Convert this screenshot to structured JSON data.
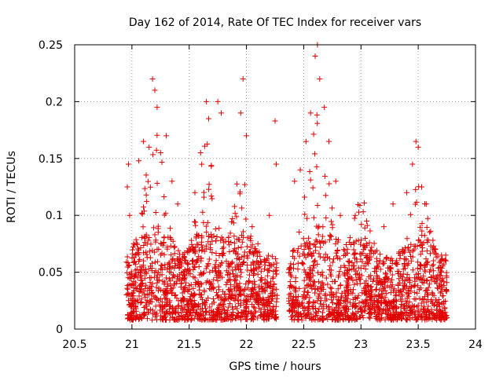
{
  "chart_data": {
    "type": "scatter",
    "title": "Day 162 of 2014, Rate Of TEC Index for receiver vars",
    "xlabel": "GPS time / hours",
    "ylabel": "ROTI / TECUs",
    "xlim": [
      20.5,
      24.0
    ],
    "ylim": [
      0.0,
      0.25
    ],
    "x_ticks": [
      "20.5",
      "21",
      "21.5",
      "22",
      "22.5",
      "23",
      "23.5",
      "24"
    ],
    "y_ticks": [
      "0",
      "0.05",
      "0.1",
      "0.15",
      "0.2",
      "0.25"
    ],
    "grid": true,
    "marker": "plus",
    "color": "#e00000",
    "x_range_with_data": [
      20.95,
      23.75
    ],
    "data_gap": [
      22.27,
      22.37
    ],
    "series": [
      {
        "name": "ROTI",
        "points": [
          [
            21.0,
            0.015
          ],
          [
            21.03,
            0.025
          ],
          [
            21.05,
            0.045
          ],
          [
            21.08,
            0.035
          ],
          [
            21.1,
            0.06
          ],
          [
            21.13,
            0.02
          ],
          [
            21.15,
            0.03
          ],
          [
            21.18,
            0.04
          ],
          [
            21.2,
            0.015
          ],
          [
            21.23,
            0.05
          ],
          [
            21.25,
            0.02
          ],
          [
            21.28,
            0.03
          ],
          [
            21.3,
            0.045
          ],
          [
            21.33,
            0.025
          ],
          [
            21.35,
            0.06
          ],
          [
            21.38,
            0.03
          ],
          [
            21.4,
            0.02
          ],
          [
            21.43,
            0.04
          ],
          [
            21.45,
            0.05
          ],
          [
            21.48,
            0.025
          ],
          [
            21.5,
            0.035
          ],
          [
            21.53,
            0.03
          ],
          [
            21.55,
            0.045
          ],
          [
            21.58,
            0.02
          ],
          [
            21.6,
            0.03
          ],
          [
            21.65,
            0.025
          ],
          [
            21.7,
            0.04
          ],
          [
            21.75,
            0.03
          ],
          [
            21.8,
            0.02
          ],
          [
            21.85,
            0.035
          ],
          [
            21.9,
            0.025
          ],
          [
            21.95,
            0.03
          ],
          [
            22.0,
            0.02
          ],
          [
            22.05,
            0.035
          ],
          [
            22.1,
            0.03
          ],
          [
            22.15,
            0.025
          ],
          [
            22.2,
            0.02
          ],
          [
            22.25,
            0.03
          ],
          [
            22.4,
            0.02
          ],
          [
            22.45,
            0.015
          ],
          [
            22.5,
            0.03
          ],
          [
            22.55,
            0.02
          ],
          [
            22.6,
            0.035
          ],
          [
            22.65,
            0.025
          ],
          [
            22.7,
            0.02
          ],
          [
            22.75,
            0.03
          ],
          [
            22.8,
            0.015
          ],
          [
            22.85,
            0.025
          ],
          [
            22.9,
            0.01
          ],
          [
            22.95,
            0.02
          ],
          [
            23.0,
            0.015
          ],
          [
            23.05,
            0.03
          ],
          [
            23.1,
            0.02
          ],
          [
            23.15,
            0.015
          ],
          [
            23.2,
            0.025
          ],
          [
            23.25,
            0.01
          ],
          [
            23.3,
            0.02
          ],
          [
            23.35,
            0.015
          ],
          [
            23.4,
            0.02
          ],
          [
            23.45,
            0.01
          ],
          [
            23.5,
            0.015
          ],
          [
            23.55,
            0.02
          ],
          [
            23.6,
            0.015
          ],
          [
            23.65,
            0.01
          ],
          [
            23.7,
            0.015
          ],
          [
            23.75,
            0.01
          ],
          [
            20.96,
            0.125
          ],
          [
            20.97,
            0.145
          ],
          [
            20.98,
            0.1
          ],
          [
            21.06,
            0.148
          ],
          [
            21.1,
            0.165
          ],
          [
            21.15,
            0.16
          ],
          [
            21.18,
            0.22
          ],
          [
            21.2,
            0.21
          ],
          [
            21.22,
            0.195
          ],
          [
            21.25,
            0.155
          ],
          [
            21.3,
            0.17
          ],
          [
            21.35,
            0.13
          ],
          [
            21.4,
            0.11
          ],
          [
            21.55,
            0.12
          ],
          [
            21.6,
            0.155
          ],
          [
            21.65,
            0.2
          ],
          [
            21.67,
            0.185
          ],
          [
            21.75,
            0.2
          ],
          [
            21.78,
            0.19
          ],
          [
            21.95,
            0.19
          ],
          [
            21.97,
            0.22
          ],
          [
            22.0,
            0.17
          ],
          [
            22.05,
            0.09
          ],
          [
            22.1,
            0.075
          ],
          [
            22.2,
            0.1
          ],
          [
            22.25,
            0.183
          ],
          [
            22.26,
            0.145
          ],
          [
            22.42,
            0.13
          ],
          [
            22.47,
            0.14
          ],
          [
            22.52,
            0.165
          ],
          [
            22.56,
            0.19
          ],
          [
            22.6,
            0.24
          ],
          [
            22.62,
            0.25
          ],
          [
            22.64,
            0.22
          ],
          [
            22.68,
            0.195
          ],
          [
            22.72,
            0.165
          ],
          [
            22.78,
            0.13
          ],
          [
            22.82,
            0.1
          ],
          [
            22.95,
            0.1
          ],
          [
            23.05,
            0.095
          ],
          [
            23.2,
            0.09
          ],
          [
            23.28,
            0.11
          ],
          [
            23.4,
            0.12
          ],
          [
            23.45,
            0.145
          ],
          [
            23.48,
            0.165
          ],
          [
            23.5,
            0.16
          ],
          [
            23.53,
            0.125
          ],
          [
            23.57,
            0.11
          ],
          [
            23.6,
            0.085
          ],
          [
            23.65,
            0.07
          ],
          [
            23.7,
            0.06
          ],
          [
            23.74,
            0.065
          ]
        ]
      }
    ]
  }
}
